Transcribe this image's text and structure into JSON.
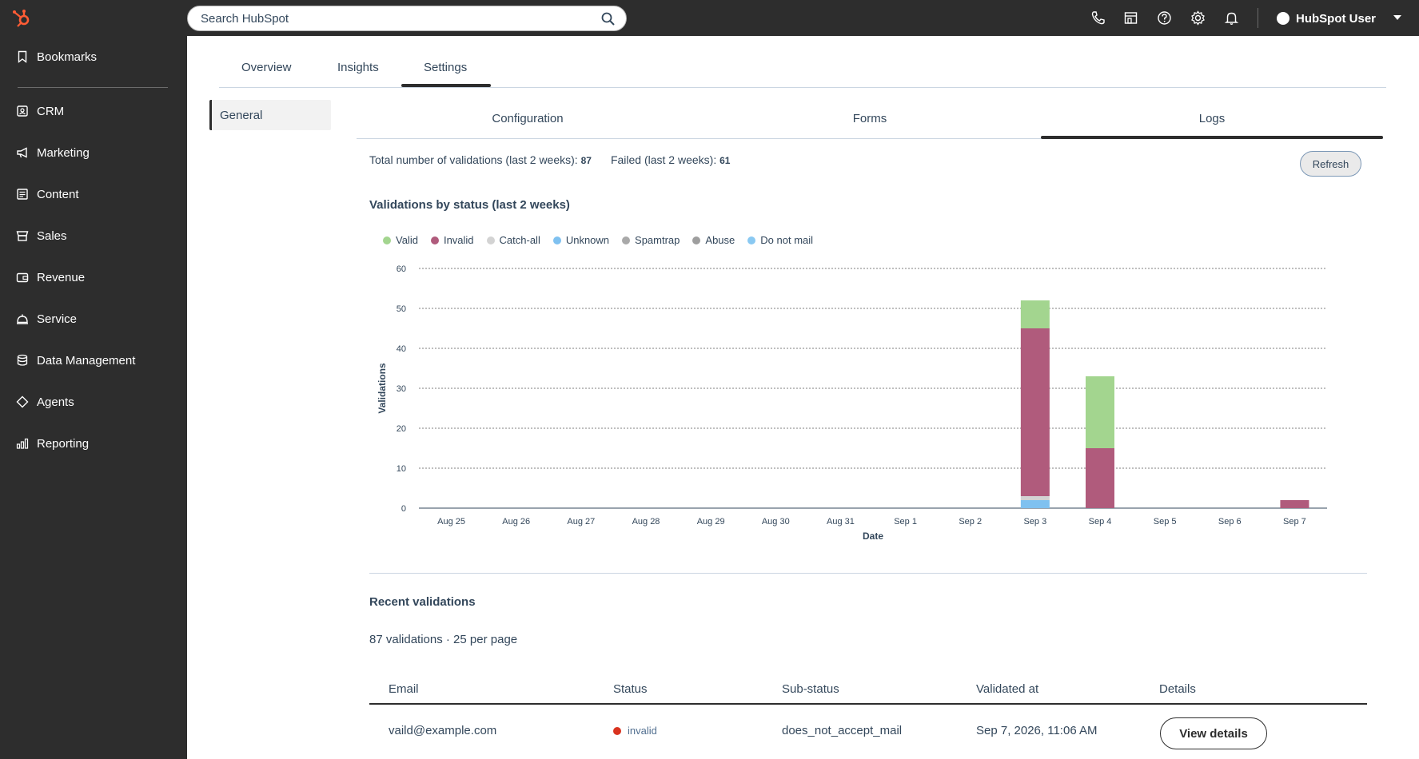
{
  "topbar": {
    "search_placeholder": "Search HubSpot",
    "user_name": "HubSpot User"
  },
  "sidebar": {
    "items": [
      {
        "label": "Bookmarks",
        "icon": "bookmark-icon"
      },
      {
        "label": "CRM",
        "icon": "crm-icon"
      },
      {
        "label": "Marketing",
        "icon": "megaphone-icon"
      },
      {
        "label": "Content",
        "icon": "content-icon"
      },
      {
        "label": "Sales",
        "icon": "sales-icon"
      },
      {
        "label": "Revenue",
        "icon": "wallet-icon"
      },
      {
        "label": "Service",
        "icon": "bell-service-icon"
      },
      {
        "label": "Data Management",
        "icon": "database-icon"
      },
      {
        "label": "Agents",
        "icon": "diamond-icon"
      },
      {
        "label": "Reporting",
        "icon": "bar-chart-icon"
      }
    ]
  },
  "main_tabs": [
    {
      "label": "Overview"
    },
    {
      "label": "Insights"
    },
    {
      "label": "Settings",
      "active": true
    }
  ],
  "settings_nav": {
    "general": "General"
  },
  "sub_tabs": [
    {
      "label": "Configuration"
    },
    {
      "label": "Forms"
    },
    {
      "label": "Logs",
      "active": true
    }
  ],
  "stats": {
    "total_label": "Total number of validations (last 2 weeks):",
    "total_value": "87",
    "failed_label": "Failed (last 2 weeks):",
    "failed_value": "61",
    "refresh_label": "Refresh"
  },
  "chart_section_title": "Validations by status (last 2 weeks)",
  "chart_data": {
    "type": "bar",
    "stacked": true,
    "categories": [
      "Aug 25",
      "Aug 26",
      "Aug 27",
      "Aug 28",
      "Aug 29",
      "Aug 30",
      "Aug 31",
      "Sep 1",
      "Sep 2",
      "Sep 3",
      "Sep 4",
      "Sep 5",
      "Sep 6",
      "Sep 7"
    ],
    "series": [
      {
        "name": "Valid",
        "color": "#a3d58f",
        "values": [
          0,
          0,
          0,
          0,
          0,
          0,
          0,
          0,
          0,
          7,
          18,
          0,
          0,
          0
        ]
      },
      {
        "name": "Invalid",
        "color": "#b05b7c",
        "values": [
          0,
          0,
          0,
          0,
          0,
          0,
          0,
          0,
          0,
          42,
          15,
          0,
          0,
          2
        ]
      },
      {
        "name": "Catch-all",
        "color": "#d3d3d3",
        "values": [
          0,
          0,
          0,
          0,
          0,
          0,
          0,
          0,
          0,
          1,
          0,
          0,
          0,
          0
        ]
      },
      {
        "name": "Unknown",
        "color": "#7fc1f0",
        "values": [
          0,
          0,
          0,
          0,
          0,
          0,
          0,
          0,
          0,
          2,
          0,
          0,
          0,
          0
        ]
      },
      {
        "name": "Spamtrap",
        "color": "#a9a9a9",
        "values": [
          0,
          0,
          0,
          0,
          0,
          0,
          0,
          0,
          0,
          0,
          0,
          0,
          0,
          0
        ]
      },
      {
        "name": "Abuse",
        "color": "#9e9e9e",
        "values": [
          0,
          0,
          0,
          0,
          0,
          0,
          0,
          0,
          0,
          0,
          0,
          0,
          0,
          0
        ]
      },
      {
        "name": "Do not mail",
        "color": "#8ac9f2",
        "values": [
          0,
          0,
          0,
          0,
          0,
          0,
          0,
          0,
          0,
          0,
          0,
          0,
          0,
          0
        ]
      }
    ],
    "xlabel": "Date",
    "ylabel": "Validations",
    "ylim": [
      0,
      60
    ],
    "yticks": [
      0,
      10,
      20,
      30,
      40,
      50,
      60
    ],
    "grid": true,
    "legend": "top-left"
  },
  "recent": {
    "title": "Recent validations",
    "count_text": "87 validations · 25 per page",
    "columns": [
      "Email",
      "Status",
      "Sub-status",
      "Validated at",
      "Details"
    ],
    "rows": [
      {
        "email": "vaild@example.com",
        "status": "invalid",
        "sub_status": "does_not_accept_mail",
        "validated_at": "Sep 7, 2026, 11:06 AM",
        "details_label": "View details"
      }
    ]
  }
}
